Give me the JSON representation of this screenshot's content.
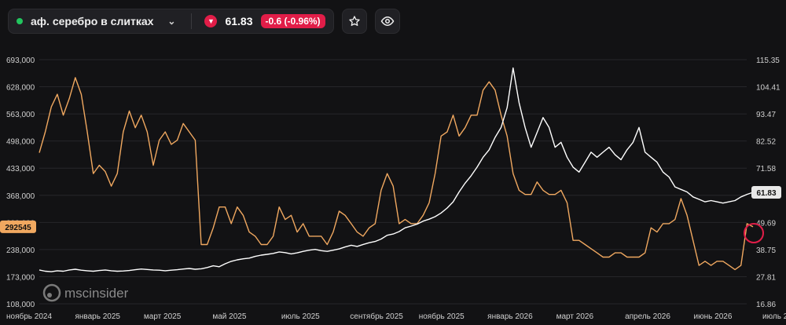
{
  "header": {
    "asset_name": "аф. серебро в слитках",
    "price": "61.83",
    "change": "-0.6 (-0.96%)",
    "status_color": "#22c55e",
    "down_color": "#e11d48",
    "icons": [
      "chevron-down-icon",
      "arrow-down-icon",
      "star-icon",
      "eye-icon"
    ]
  },
  "watermark": "mscinsider",
  "chart_data": {
    "type": "line",
    "x_labels": [
      "ноябрь 2024",
      "январь 2025",
      "март 2025",
      "май 2025",
      "июль 2025",
      "сентябрь 2025",
      "ноябрь 2025",
      "январь 2026",
      "март 2026",
      "апрель 2026",
      "июнь 2026",
      "июль 2026"
    ],
    "y_left_ticks": [
      "693,000",
      "628,000",
      "563,000",
      "498,000",
      "433,000",
      "368,000",
      "303,000",
      "238,000",
      "173,000",
      "108,000"
    ],
    "y_right_ticks": [
      "115.35",
      "104.41",
      "93.47",
      "82.52",
      "71.58",
      "60.64",
      "49.69",
      "38.75",
      "27.81",
      "16.86"
    ],
    "ylim_left": [
      108000,
      693000
    ],
    "ylim_right": [
      16.86,
      115.35
    ],
    "left_last_label": "292545",
    "right_last_label": "61.83",
    "series": [
      {
        "axis": "left",
        "color": "#f0a860",
        "values": [
          470000,
          520000,
          580000,
          610000,
          560000,
          600000,
          650000,
          610000,
          520000,
          420000,
          440000,
          425000,
          390000,
          420000,
          520000,
          570000,
          530000,
          560000,
          520000,
          440000,
          500000,
          520000,
          490000,
          500000,
          540000,
          520000,
          500000,
          250000,
          250000,
          290000,
          340000,
          340000,
          300000,
          340000,
          320000,
          280000,
          270000,
          250000,
          250000,
          270000,
          340000,
          310000,
          320000,
          280000,
          300000,
          270000,
          270000,
          270000,
          250000,
          280000,
          330000,
          320000,
          300000,
          280000,
          270000,
          290000,
          300000,
          380000,
          420000,
          390000,
          300000,
          310000,
          300000,
          300000,
          320000,
          350000,
          420000,
          510000,
          520000,
          560000,
          510000,
          530000,
          560000,
          560000,
          620000,
          640000,
          620000,
          560000,
          510000,
          420000,
          380000,
          370000,
          370000,
          400000,
          380000,
          370000,
          370000,
          380000,
          350000,
          260000,
          260000,
          250000,
          240000,
          230000,
          220000,
          220000,
          230000,
          230000,
          220000,
          220000,
          220000,
          230000,
          290000,
          280000,
          300000,
          300000,
          310000,
          360000,
          320000,
          260000,
          200000,
          210000,
          200000,
          210000,
          210000,
          200000,
          190000,
          200000,
          300000,
          292545
        ]
      },
      {
        "axis": "right",
        "color": "#ffffff",
        "values": [
          30.5,
          30.0,
          29.8,
          30.2,
          30.0,
          30.5,
          30.8,
          30.4,
          30.2,
          30.0,
          30.3,
          30.5,
          30.2,
          30.0,
          30.1,
          30.3,
          30.6,
          30.9,
          30.7,
          30.5,
          30.4,
          30.2,
          30.4,
          30.6,
          30.9,
          31.1,
          30.8,
          31.0,
          31.5,
          32.2,
          31.8,
          33.0,
          34.0,
          34.6,
          35.0,
          35.3,
          36.0,
          36.5,
          36.8,
          37.2,
          37.8,
          37.5,
          37.0,
          37.4,
          38.0,
          38.5,
          38.8,
          38.3,
          38.0,
          38.5,
          39.0,
          39.8,
          40.5,
          40.0,
          40.8,
          41.5,
          42.0,
          43.0,
          44.5,
          45.0,
          46.0,
          47.5,
          48.2,
          49.0,
          50.2,
          51.0,
          52.0,
          53.5,
          55.5,
          58.0,
          62.0,
          65.5,
          68.5,
          72.0,
          76.0,
          79.0,
          84.0,
          88.0,
          96.0,
          112.0,
          98.0,
          88.0,
          80.0,
          86.0,
          92.0,
          88.0,
          80.0,
          82.0,
          76.0,
          72.0,
          70.0,
          74.0,
          78.0,
          76.0,
          78.0,
          80.0,
          77.0,
          75.0,
          79.0,
          82.0,
          88.0,
          78.0,
          76.0,
          74.0,
          70.0,
          68.0,
          64.0,
          63.0,
          62.0,
          60.0,
          59.0,
          58.0,
          58.5,
          58.0,
          57.5,
          58.0,
          58.5,
          60.0,
          61.0,
          61.83
        ]
      }
    ]
  }
}
